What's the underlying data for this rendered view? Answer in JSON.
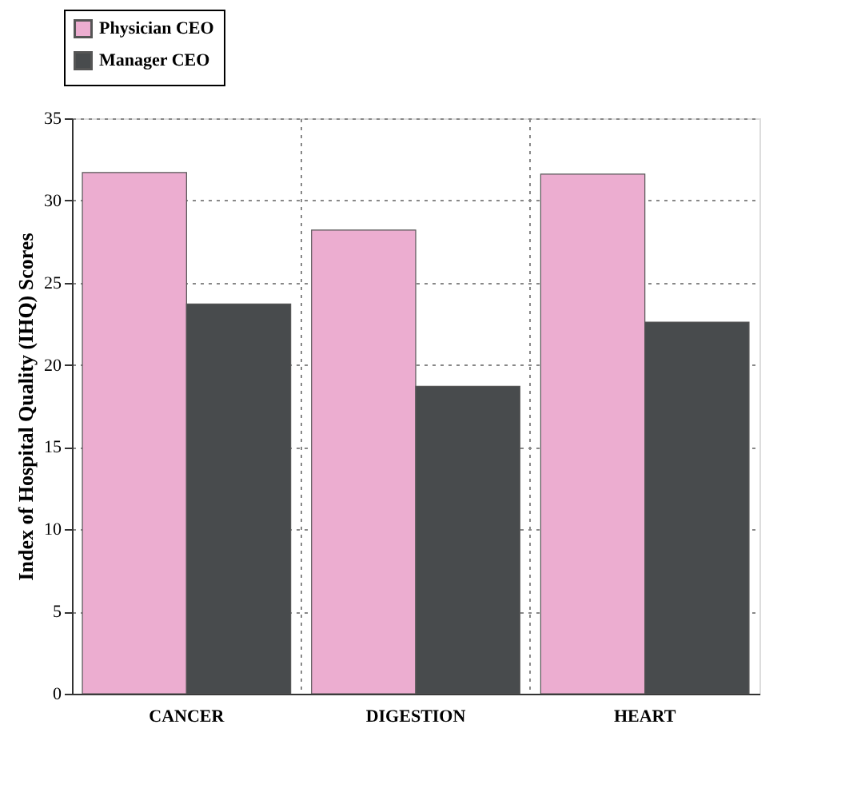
{
  "chart_data": {
    "type": "bar",
    "ylabel": "Index of Hospital Quality (IHQ) Scores",
    "categories": [
      "CANCER",
      "DIGESTION",
      "HEART"
    ],
    "series": [
      {
        "name": "Physician CEO",
        "color": "#ecadd0",
        "values": [
          31.7,
          28.2,
          31.6
        ]
      },
      {
        "name": "Manager CEO",
        "color": "#484b4d",
        "values": [
          23.7,
          18.7,
          22.6
        ]
      }
    ],
    "ylim": [
      0,
      35
    ],
    "yticks": [
      0,
      5,
      10,
      15,
      20,
      25,
      30,
      35
    ],
    "grid": true,
    "legend": "top left"
  }
}
